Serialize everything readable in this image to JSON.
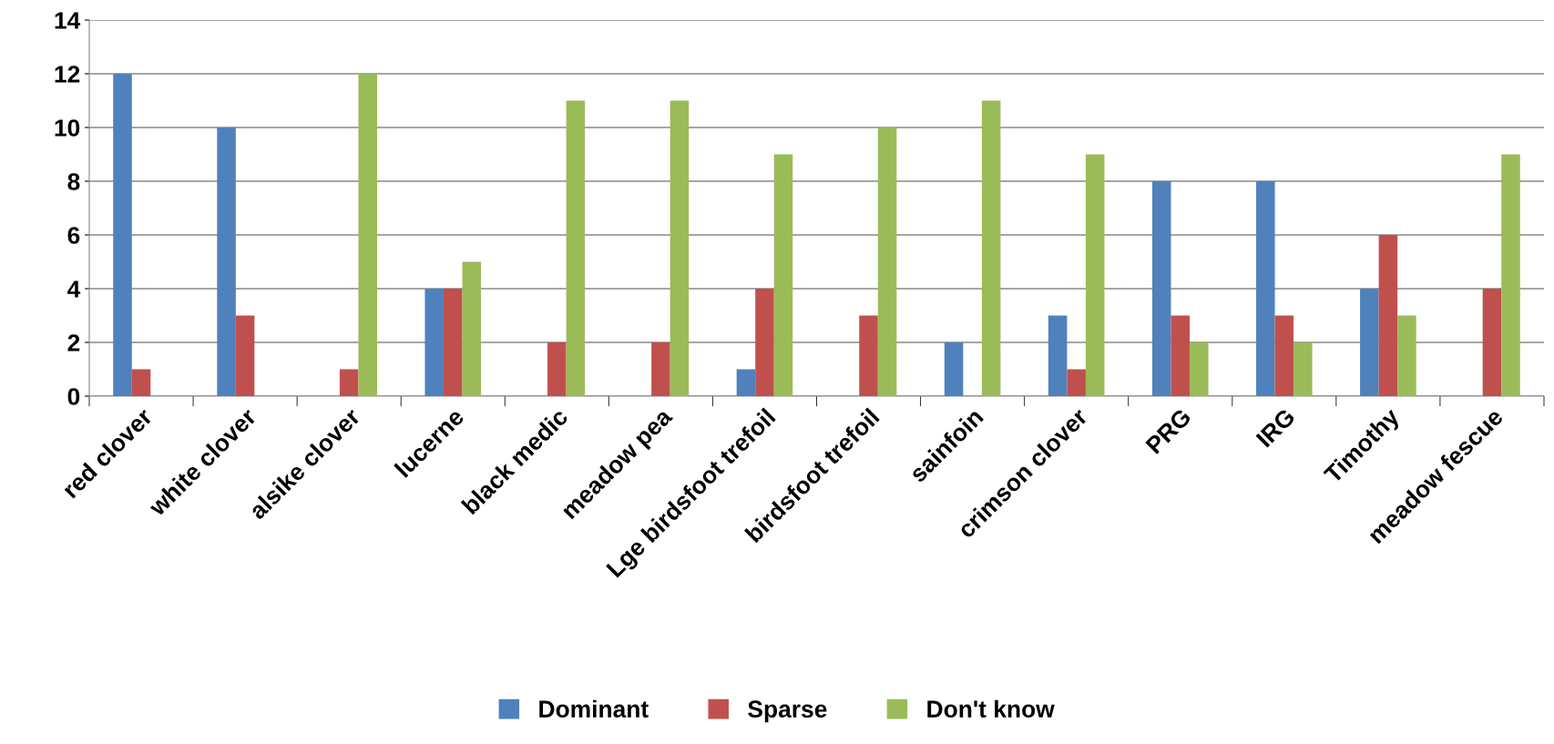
{
  "chart_data": {
    "type": "bar",
    "categories": [
      "red clover",
      "white clover",
      "alsike clover",
      "lucerne",
      "black medic",
      "meadow pea",
      "Lge birdsfoot trefoil",
      "birdsfoot trefoil",
      "sainfoin",
      "crimson clover",
      "PRG",
      "IRG",
      "Timothy",
      "meadow fescue"
    ],
    "series": [
      {
        "name": "Dominant",
        "color": "#4f81bd",
        "values": [
          12,
          10,
          0,
          4,
          0,
          0,
          1,
          0,
          2,
          3,
          8,
          8,
          4,
          0
        ]
      },
      {
        "name": "Sparse",
        "color": "#c0504d",
        "values": [
          1,
          3,
          1,
          4,
          2,
          2,
          4,
          3,
          0,
          1,
          3,
          3,
          6,
          4
        ]
      },
      {
        "name": "Don't know",
        "color": "#9bbb59",
        "values": [
          0,
          0,
          12,
          5,
          11,
          11,
          9,
          10,
          11,
          9,
          2,
          2,
          3,
          9
        ]
      }
    ],
    "ylim": [
      0,
      14
    ],
    "yticks": [
      0,
      2,
      4,
      6,
      8,
      10,
      12,
      14
    ],
    "grid": "y",
    "legend": "bottom"
  }
}
